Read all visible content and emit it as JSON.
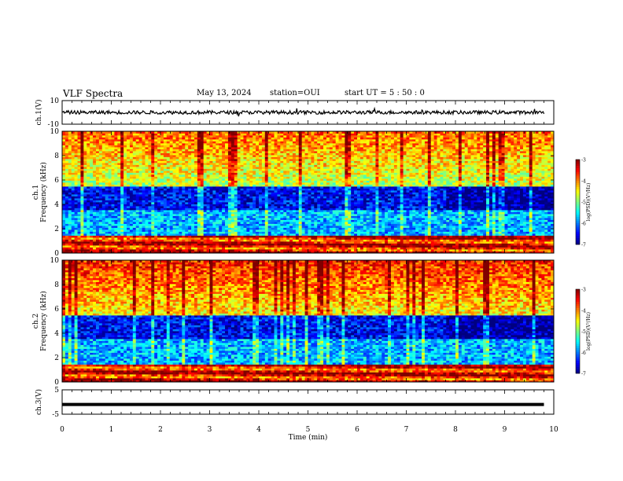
{
  "header": {
    "title": "VLF Spectra",
    "date": "May 13, 2024",
    "station": "station=OUI",
    "start": "start  UT  =   5  : 50 : 0"
  },
  "chart_data": [
    {
      "type": "line",
      "panel": "ch1",
      "ylabel": "ch.1(V)",
      "ylim": [
        -10,
        10
      ],
      "yticks": [
        10,
        -10
      ],
      "xlim": [
        0,
        10
      ],
      "series": [
        {
          "values": [],
          "mean": 0.0,
          "approx_amplitude": 1.5
        }
      ]
    },
    {
      "type": "heatmap",
      "panel": "ch1-spectrogram",
      "ylabel": "ch.1",
      "ylabel2": "Frequency (kHz)",
      "ylim": [
        0,
        10
      ],
      "yticks": [
        0,
        2,
        4,
        6,
        8,
        10
      ],
      "xlim": [
        0,
        10
      ],
      "colorbar": {
        "label": "log(PSD)(V²/Hz)",
        "range": [
          -7,
          -3
        ],
        "ticks": [
          -3,
          -4,
          -5,
          -6,
          -7
        ]
      },
      "dominant_bands": [
        {
          "freq_kHz": [
            0.0,
            1.5
          ],
          "level": -3.5
        },
        {
          "freq_kHz": [
            1.5,
            3.5
          ],
          "level": -5.8
        },
        {
          "freq_kHz": [
            3.5,
            5.5
          ],
          "level": -6.5
        },
        {
          "freq_kHz": [
            5.5,
            10.0
          ],
          "level": -4.8
        }
      ]
    },
    {
      "type": "heatmap",
      "panel": "ch2-spectrogram",
      "ylabel": "ch.2",
      "ylabel2": "Frequency (kHz)",
      "ylim": [
        0,
        10
      ],
      "yticks": [
        0,
        2,
        4,
        6,
        8,
        10
      ],
      "xlim": [
        0,
        10
      ],
      "colorbar": {
        "label": "log(PSD)(V²/Hz)",
        "range": [
          -7,
          -3
        ],
        "ticks": [
          -3,
          -4,
          -5,
          -6,
          -7
        ]
      },
      "dominant_bands": [
        {
          "freq_kHz": [
            0.0,
            1.5
          ],
          "level": -3.5
        },
        {
          "freq_kHz": [
            1.5,
            3.5
          ],
          "level": -5.8
        },
        {
          "freq_kHz": [
            3.5,
            5.5
          ],
          "level": -6.5
        },
        {
          "freq_kHz": [
            5.5,
            10.0
          ],
          "level": -4.5
        }
      ]
    },
    {
      "type": "line",
      "panel": "ch3",
      "ylabel": "ch.3(V)",
      "ylim": [
        -5,
        5
      ],
      "yticks": [
        5,
        -5
      ],
      "xlim": [
        0,
        10
      ],
      "series": [
        {
          "values": [],
          "mean": -1.0
        }
      ]
    }
  ],
  "xaxis": {
    "label": "Time  (min)",
    "ticks": [
      "0",
      "1",
      "2",
      "3",
      "4",
      "5",
      "6",
      "7",
      "8",
      "9",
      "10"
    ]
  }
}
